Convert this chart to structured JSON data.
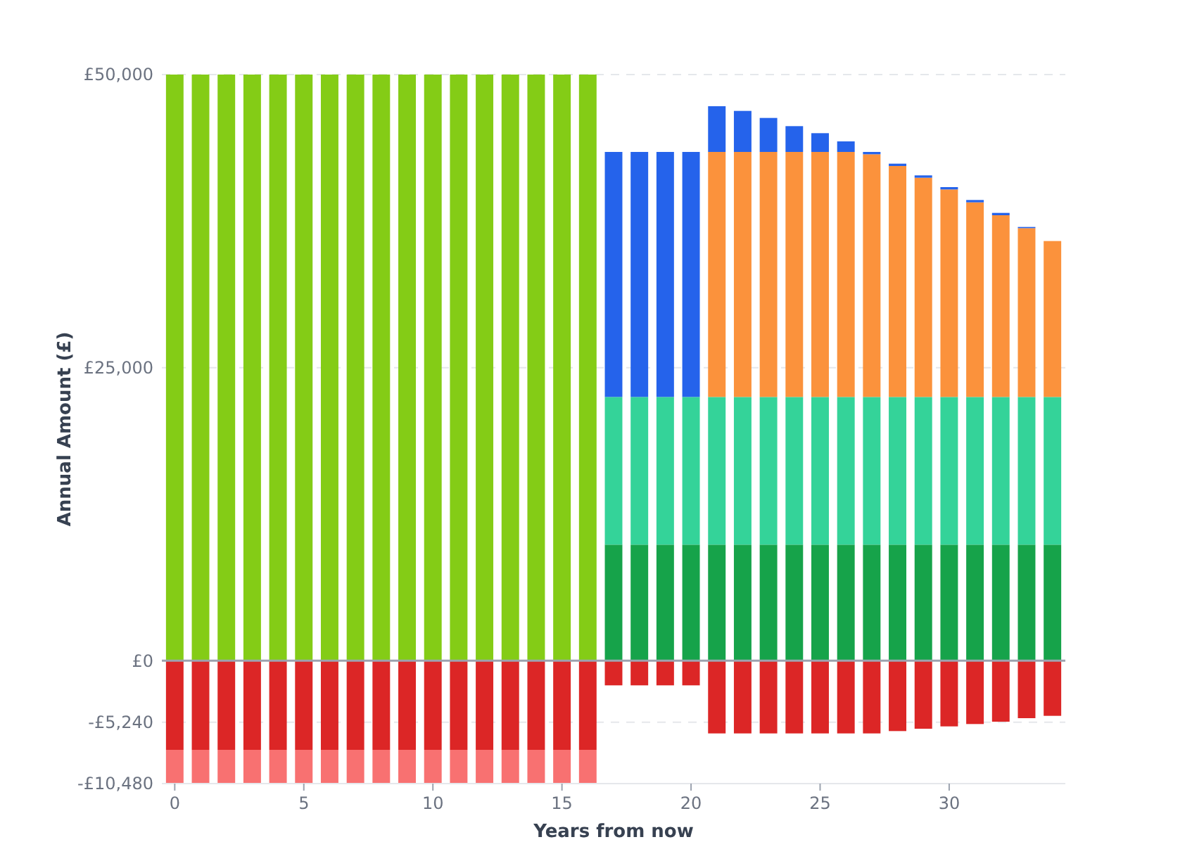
{
  "chart_data": {
    "type": "bar",
    "stacked": true,
    "xlabel": "Years from now",
    "ylabel": "Annual Amount (£)",
    "x": [
      0,
      1,
      2,
      3,
      4,
      5,
      6,
      7,
      8,
      9,
      10,
      11,
      12,
      13,
      14,
      15,
      16,
      17,
      18,
      19,
      20,
      21,
      22,
      23,
      24,
      25,
      26,
      27,
      28,
      29,
      30,
      31,
      32,
      33,
      34
    ],
    "xlim": [
      -0.5,
      34.5
    ],
    "xticks": [
      0,
      5,
      10,
      15,
      20,
      25,
      30
    ],
    "ylim": [
      -10480,
      50000
    ],
    "yticks": [
      {
        "value": -10480,
        "label": "-£10,480"
      },
      {
        "value": -5240,
        "label": "-£5,240"
      },
      {
        "value": 0,
        "label": "£0"
      },
      {
        "value": 25000,
        "label": "£25,000"
      },
      {
        "value": 50000,
        "label": "£50,000"
      }
    ],
    "grid": "y",
    "series": [
      {
        "color": "#84cc16",
        "values": [
          50000,
          50000,
          50000,
          50000,
          50000,
          50000,
          50000,
          50000,
          50000,
          50000,
          50000,
          50000,
          50000,
          50000,
          50000,
          50000,
          50000,
          null,
          null,
          null,
          null,
          null,
          null,
          null,
          null,
          null,
          null,
          null,
          null,
          null,
          null,
          null,
          null,
          null,
          null
        ]
      },
      {
        "color": "#16a34a",
        "values": [
          null,
          null,
          null,
          null,
          null,
          null,
          null,
          null,
          null,
          null,
          null,
          null,
          null,
          null,
          null,
          null,
          null,
          9900,
          9900,
          9900,
          9900,
          9900,
          9900,
          9900,
          9900,
          9900,
          9900,
          9900,
          9900,
          9900,
          9900,
          9900,
          9900,
          9900,
          9900
        ]
      },
      {
        "color": "#34d399",
        "values": [
          null,
          null,
          null,
          null,
          null,
          null,
          null,
          null,
          null,
          null,
          null,
          null,
          null,
          null,
          null,
          null,
          null,
          12600,
          12600,
          12600,
          12600,
          12600,
          12600,
          12600,
          12600,
          12600,
          12600,
          12600,
          12600,
          12600,
          12600,
          12600,
          12600,
          12600,
          12600
        ]
      },
      {
        "color": "#fb923c",
        "values": [
          null,
          null,
          null,
          null,
          null,
          null,
          null,
          null,
          null,
          null,
          null,
          null,
          null,
          null,
          null,
          null,
          null,
          null,
          null,
          null,
          null,
          20900,
          20900,
          20900,
          20900,
          20900,
          20900,
          20700,
          19700,
          18700,
          17700,
          16600,
          15500,
          14400,
          13300
        ]
      },
      {
        "color": "#2563eb",
        "values": [
          null,
          null,
          null,
          null,
          null,
          null,
          null,
          null,
          null,
          null,
          null,
          null,
          null,
          null,
          null,
          null,
          null,
          20900,
          20900,
          20900,
          20900,
          3900,
          3500,
          2900,
          2200,
          1600,
          900,
          200,
          200,
          200,
          200,
          200,
          200,
          100,
          null
        ]
      },
      {
        "color": "#dc2626",
        "values": [
          -7600,
          -7600,
          -7600,
          -7600,
          -7600,
          -7600,
          -7600,
          -7600,
          -7600,
          -7600,
          -7600,
          -7600,
          -7600,
          -7600,
          -7600,
          -7600,
          -7600,
          -2100,
          -2100,
          -2100,
          -2100,
          -6200,
          -6200,
          -6200,
          -6200,
          -6200,
          -6200,
          -6200,
          -6000,
          -5800,
          -5600,
          -5400,
          -5200,
          -4900,
          -4700
        ]
      },
      {
        "color": "#f87171",
        "values": [
          -2880,
          -2880,
          -2880,
          -2880,
          -2880,
          -2880,
          -2880,
          -2880,
          -2880,
          -2880,
          -2880,
          -2880,
          -2880,
          -2880,
          -2880,
          -2880,
          -2880,
          null,
          null,
          null,
          null,
          null,
          null,
          null,
          null,
          null,
          null,
          null,
          null,
          null,
          null,
          null,
          null,
          null,
          null
        ]
      }
    ]
  }
}
